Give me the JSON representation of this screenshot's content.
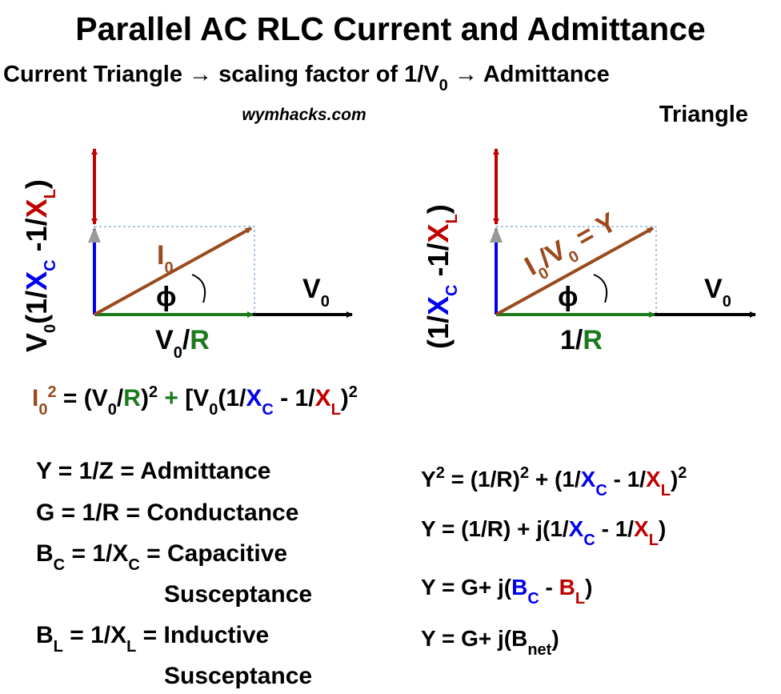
{
  "title": "Parallel AC RLC Current and Admittance",
  "subtitle": [
    "Current Triangle  → scaling factor of 1/V",
    "0",
    " → Admittance",
    "Triangle"
  ],
  "watermark": "wymhacks.com",
  "current_triangle": {
    "vertical_label": [
      "V",
      "0",
      "(1/",
      "X",
      "C",
      " -1/",
      "X",
      "L",
      ")"
    ],
    "hypotenuse_label": [
      "I",
      "0"
    ],
    "angle": "ϕ",
    "horizontal_label": [
      "V",
      "0"
    ],
    "base_label": [
      "V",
      "0",
      "/",
      "R"
    ]
  },
  "admittance_triangle": {
    "vertical_label": [
      "(1/",
      "X",
      "C",
      " -1/",
      "X",
      "L",
      ")"
    ],
    "hypotenuse_label": [
      "I",
      "0",
      "/V",
      "0",
      " = Y"
    ],
    "angle": "ϕ",
    "horizontal_label": [
      "V",
      "0"
    ],
    "base_label": [
      "1/",
      "R"
    ]
  },
  "current_equation": [
    "I",
    "0",
    "2",
    " = (V",
    "0",
    "/",
    "R",
    ")",
    "2",
    " + ",
    "[V",
    "0",
    "(1/",
    "X",
    "C",
    " - 1/",
    "X",
    "L",
    ")",
    "2"
  ],
  "definitions": [
    [
      "Y = 1/Z = Admittance"
    ],
    [
      "G = 1/R = Conductance"
    ],
    [
      "B",
      "C",
      " = 1/X",
      "C",
      " = Capacitive",
      "Susceptance"
    ],
    [
      "B",
      "L",
      " = 1/X",
      "L",
      " = Inductive",
      "Susceptance"
    ]
  ],
  "equations": [
    [
      "Y",
      "2",
      " = (1/R)",
      "2",
      " + (1/",
      "X",
      "C",
      " - 1/",
      "X",
      "L",
      ")",
      "2"
    ],
    [
      "Y = (1/R) + j(1/",
      "X",
      "C",
      " - 1/",
      "X",
      "L",
      ")"
    ],
    [
      "Y = G+ j(",
      "B",
      "C",
      " - ",
      "B",
      "L",
      ")"
    ],
    [
      "Y = G+ j(B",
      "net",
      ")"
    ]
  ]
}
